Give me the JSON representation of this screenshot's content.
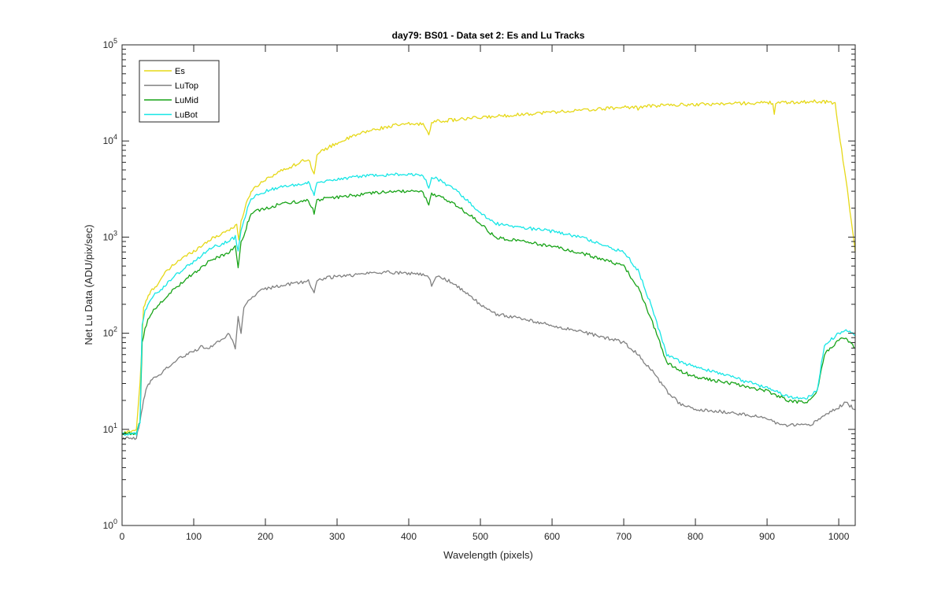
{
  "chart_data": {
    "type": "line",
    "title": "day79: BS01 - Data set 2: Es and Lu Tracks",
    "xlabel": "Wavelength (pixels)",
    "ylabel": "Net Lu Data (ADU/pix/sec)",
    "xlim": [
      0,
      1023
    ],
    "ylim": [
      1,
      100000
    ],
    "yscale": "log",
    "grid": false,
    "legend_position": "top-left",
    "x_ticks": [
      0,
      100,
      200,
      300,
      400,
      500,
      600,
      700,
      800,
      900,
      1000
    ],
    "x_tick_labels": [
      "0",
      "100",
      "200",
      "300",
      "400",
      "500",
      "600",
      "700",
      "800",
      "900",
      "1000"
    ],
    "y_ticks": [
      1,
      10,
      100,
      1000,
      10000,
      100000
    ],
    "y_tick_labels": [
      {
        "base": "10",
        "exp": "0"
      },
      {
        "base": "10",
        "exp": "1"
      },
      {
        "base": "10",
        "exp": "2"
      },
      {
        "base": "10",
        "exp": "3"
      },
      {
        "base": "10",
        "exp": "4"
      },
      {
        "base": "10",
        "exp": "5"
      }
    ],
    "series": [
      {
        "name": "Es",
        "color": "#e6d817",
        "x": [
          0,
          20,
          25,
          30,
          35,
          40,
          50,
          60,
          70,
          80,
          90,
          100,
          110,
          120,
          130,
          140,
          150,
          160,
          163,
          166,
          170,
          175,
          180,
          190,
          200,
          220,
          240,
          260,
          268,
          272,
          280,
          300,
          320,
          340,
          360,
          380,
          400,
          420,
          428,
          432,
          440,
          460,
          480,
          500,
          520,
          540,
          560,
          580,
          600,
          650,
          700,
          718,
          720,
          722,
          750,
          800,
          850,
          900,
          908,
          910,
          912,
          930,
          950,
          970,
          985,
          995,
          1000,
          1010,
          1023
        ],
        "y": [
          9,
          10,
          30,
          180,
          230,
          270,
          330,
          420,
          500,
          580,
          640,
          720,
          800,
          920,
          1000,
          1100,
          1200,
          1350,
          900,
          1500,
          1800,
          2400,
          3000,
          3500,
          4000,
          4800,
          5600,
          6600,
          4500,
          7000,
          8000,
          9500,
          11000,
          12500,
          13500,
          14500,
          15000,
          15000,
          12000,
          15500,
          16000,
          16500,
          17000,
          17500,
          18000,
          18500,
          19000,
          19500,
          20000,
          21000,
          22500,
          22500,
          21000,
          22500,
          23500,
          24000,
          24500,
          25000,
          25000,
          19000,
          25000,
          25000,
          25500,
          25800,
          25500,
          24500,
          13000,
          4000,
          700
        ]
      },
      {
        "name": "LuTop",
        "color": "#808080",
        "x": [
          0,
          20,
          25,
          30,
          35,
          40,
          50,
          60,
          80,
          100,
          110,
          120,
          130,
          140,
          150,
          158,
          162,
          166,
          170,
          180,
          190,
          200,
          220,
          240,
          260,
          268,
          272,
          280,
          300,
          320,
          340,
          360,
          380,
          400,
          420,
          428,
          432,
          440,
          460,
          480,
          500,
          520,
          540,
          560,
          580,
          600,
          650,
          700,
          720,
          740,
          760,
          780,
          800,
          850,
          900,
          920,
          940,
          960,
          980,
          1000,
          1010,
          1023
        ],
        "y": [
          8,
          8,
          12,
          20,
          28,
          32,
          36,
          42,
          55,
          65,
          72,
          68,
          80,
          85,
          100,
          70,
          150,
          100,
          190,
          230,
          270,
          290,
          310,
          330,
          350,
          260,
          360,
          370,
          390,
          400,
          420,
          430,
          430,
          420,
          410,
          380,
          320,
          390,
          340,
          260,
          200,
          160,
          150,
          140,
          130,
          120,
          100,
          80,
          60,
          40,
          25,
          18,
          16,
          15,
          13,
          11,
          11,
          11,
          14,
          17,
          19,
          16
        ]
      },
      {
        "name": "LuMid",
        "color": "#17a317",
        "x": [
          0,
          20,
          25,
          28,
          32,
          36,
          40,
          50,
          60,
          70,
          80,
          90,
          100,
          110,
          120,
          130,
          140,
          150,
          158,
          162,
          166,
          170,
          175,
          180,
          190,
          200,
          220,
          240,
          260,
          268,
          272,
          280,
          300,
          320,
          340,
          360,
          380,
          400,
          420,
          428,
          432,
          440,
          460,
          480,
          500,
          520,
          540,
          560,
          580,
          600,
          650,
          700,
          720,
          740,
          760,
          780,
          800,
          850,
          900,
          930,
          950,
          960,
          970,
          980,
          1000,
          1010,
          1023
        ],
        "y": [
          9,
          9,
          12,
          80,
          110,
          140,
          160,
          190,
          230,
          280,
          320,
          370,
          420,
          480,
          550,
          600,
          650,
          700,
          800,
          480,
          900,
          1000,
          1400,
          1700,
          1900,
          2000,
          2200,
          2300,
          2400,
          1800,
          2400,
          2500,
          2600,
          2700,
          2800,
          2900,
          3000,
          3000,
          2900,
          2200,
          2800,
          2700,
          2300,
          1800,
          1400,
          1000,
          950,
          900,
          850,
          800,
          650,
          500,
          300,
          130,
          50,
          40,
          35,
          30,
          25,
          20,
          19,
          20,
          25,
          60,
          85,
          90,
          70
        ]
      },
      {
        "name": "LuBot",
        "color": "#17e6e6",
        "x": [
          0,
          20,
          25,
          28,
          32,
          36,
          40,
          50,
          60,
          70,
          80,
          90,
          100,
          110,
          120,
          130,
          140,
          150,
          158,
          162,
          166,
          170,
          175,
          180,
          190,
          200,
          220,
          240,
          260,
          268,
          272,
          280,
          300,
          320,
          340,
          360,
          380,
          400,
          420,
          428,
          432,
          440,
          460,
          480,
          500,
          520,
          540,
          560,
          580,
          600,
          650,
          700,
          720,
          740,
          760,
          780,
          800,
          850,
          900,
          930,
          950,
          960,
          970,
          980,
          1000,
          1010,
          1023
        ],
        "y": [
          9,
          9,
          12,
          120,
          170,
          200,
          230,
          270,
          310,
          380,
          430,
          500,
          560,
          640,
          720,
          800,
          850,
          920,
          1000,
          700,
          1200,
          1500,
          2000,
          2500,
          2800,
          3000,
          3300,
          3500,
          3700,
          2800,
          3700,
          3800,
          4000,
          4200,
          4300,
          4400,
          4500,
          4500,
          4400,
          3300,
          4200,
          4000,
          3300,
          2500,
          1800,
          1400,
          1300,
          1250,
          1200,
          1150,
          950,
          700,
          450,
          180,
          60,
          50,
          45,
          35,
          27,
          22,
          21,
          22,
          26,
          75,
          100,
          110,
          95
        ]
      }
    ]
  }
}
